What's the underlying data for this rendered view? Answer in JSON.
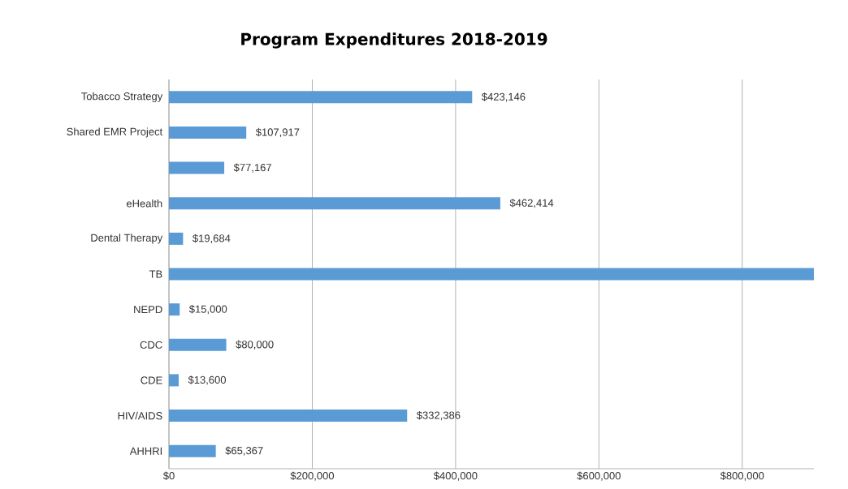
{
  "chart_data": {
    "type": "bar",
    "orientation": "horizontal",
    "title": "Program Expenditures 2018-2019",
    "categories": [
      "Tobacco Strategy",
      "Shared EMR Project",
      null,
      "eHealth",
      "Dental Therapy",
      "TB",
      "NEPD",
      "CDC",
      "CDE",
      "HIV/AIDS",
      "AHHRI"
    ],
    "values": [
      423146,
      107917,
      77167,
      462414,
      19684,
      900000,
      15000,
      80000,
      13600,
      332386,
      65367
    ],
    "value_labels": [
      "$423,146",
      "$107,917",
      "$77,167",
      "$462,414",
      "$19,684",
      null,
      "$15,000",
      "$80,000",
      "$13,600",
      "$332,386",
      "$65,367"
    ],
    "color": "#5b9bd5",
    "xlim": [
      0,
      900000
    ],
    "xticks": [
      {
        "value": 0,
        "label": "$0"
      },
      {
        "value": 200000,
        "label": "$200,000"
      },
      {
        "value": 400000,
        "label": "$400,000"
      },
      {
        "value": 600000,
        "label": "$600,000"
      },
      {
        "value": 800000,
        "label": "$800,000"
      }
    ],
    "grid": "x"
  }
}
